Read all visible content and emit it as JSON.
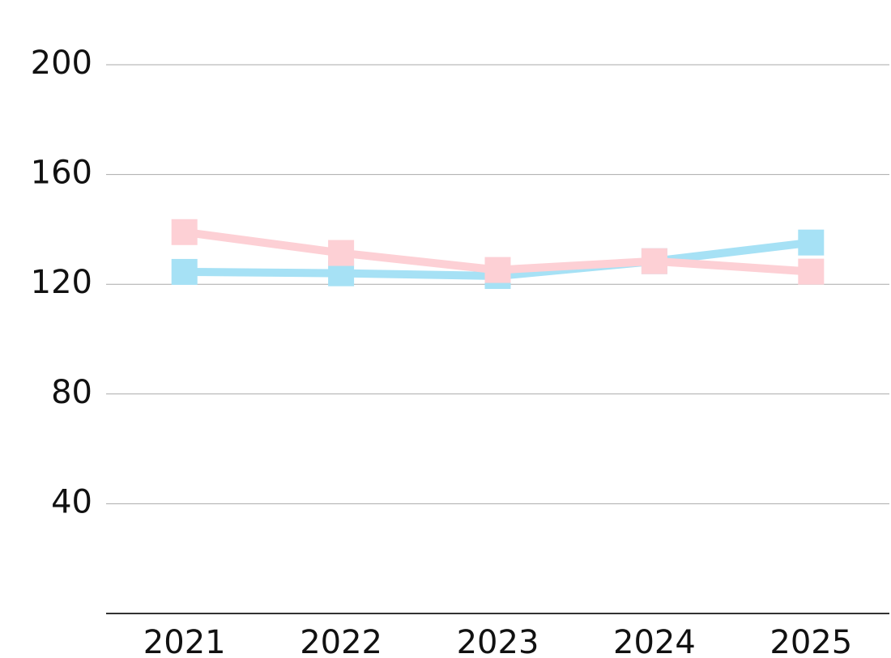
{
  "chart_data": {
    "type": "line",
    "categories": [
      "2021",
      "2022",
      "2023",
      "2024",
      "2025"
    ],
    "series": [
      {
        "color": "#a6e1f5",
        "values": [
          124.5,
          124,
          123,
          128.4,
          135.2
        ]
      },
      {
        "color": "#fdd0d5",
        "values": [
          139,
          131.4,
          125.2,
          128.4,
          124.6
        ]
      }
    ],
    "ylim": [
      0,
      200
    ],
    "yticks": [
      40,
      80,
      120,
      160,
      200
    ],
    "grid": true
  }
}
